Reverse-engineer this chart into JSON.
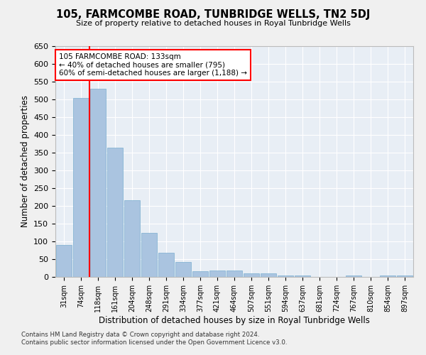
{
  "title": "105, FARMCOMBE ROAD, TUNBRIDGE WELLS, TN2 5DJ",
  "subtitle": "Size of property relative to detached houses in Royal Tunbridge Wells",
  "xlabel": "Distribution of detached houses by size in Royal Tunbridge Wells",
  "ylabel": "Number of detached properties",
  "footer_line1": "Contains HM Land Registry data © Crown copyright and database right 2024.",
  "footer_line2": "Contains public sector information licensed under the Open Government Licence v3.0.",
  "categories": [
    "31sqm",
    "74sqm",
    "118sqm",
    "161sqm",
    "204sqm",
    "248sqm",
    "291sqm",
    "334sqm",
    "377sqm",
    "421sqm",
    "464sqm",
    "507sqm",
    "551sqm",
    "594sqm",
    "637sqm",
    "681sqm",
    "724sqm",
    "767sqm",
    "810sqm",
    "854sqm",
    "897sqm"
  ],
  "bar_heights": [
    90,
    505,
    530,
    365,
    217,
    125,
    68,
    42,
    16,
    18,
    18,
    11,
    10,
    5,
    4,
    1,
    1,
    5,
    1,
    5,
    5
  ],
  "bar_color": "#aac4e0",
  "bar_edgecolor": "#7aaed0",
  "background_color": "#e8eef5",
  "grid_color": "#ffffff",
  "fig_background": "#f0f0f0",
  "vline_color": "red",
  "vline_index": 2,
  "annotation_text": "105 FARMCOMBE ROAD: 133sqm\n← 40% of detached houses are smaller (795)\n60% of semi-detached houses are larger (1,188) →",
  "annotation_box_color": "white",
  "annotation_box_edgecolor": "red",
  "ylim": [
    0,
    650
  ],
  "yticks": [
    0,
    50,
    100,
    150,
    200,
    250,
    300,
    350,
    400,
    450,
    500,
    550,
    600,
    650
  ]
}
